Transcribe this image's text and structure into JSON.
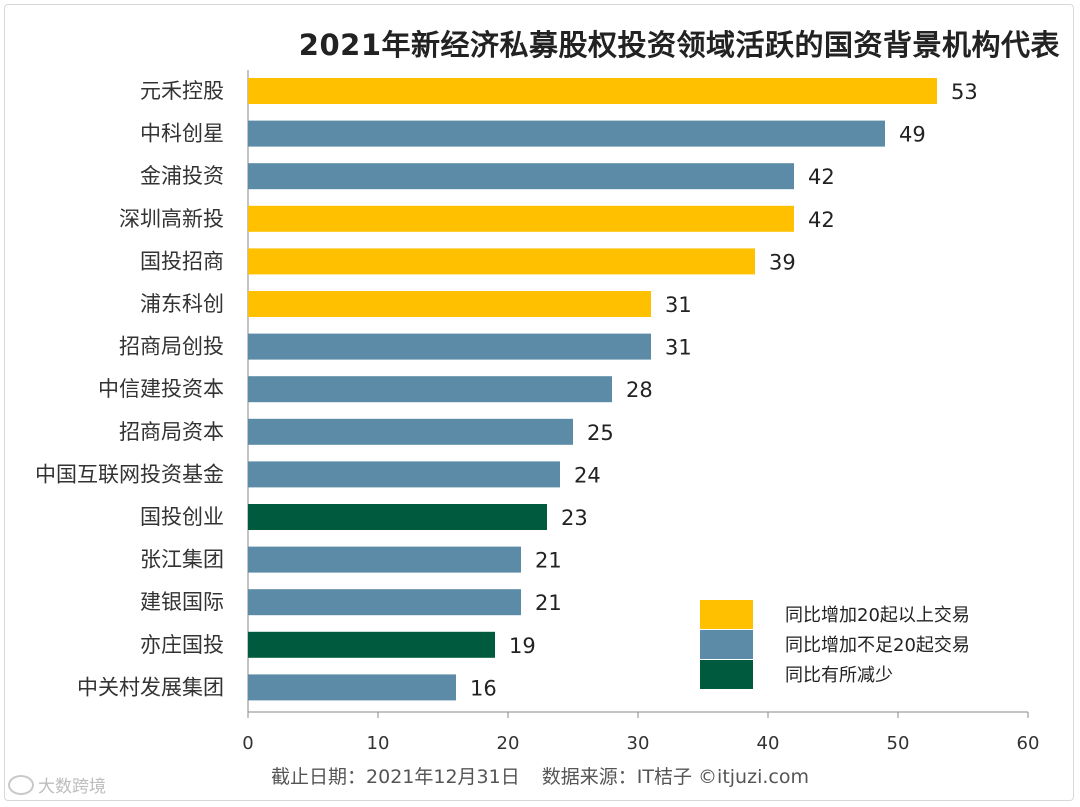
{
  "chart_data": {
    "type": "bar",
    "orientation": "horizontal",
    "title": "2021年新经济私募股权投资领域活跃的国资背景机构代表",
    "categories": [
      "元禾控股",
      "中科创星",
      "金浦投资",
      "深圳高新投",
      "国投招商",
      "浦东科创",
      "招商局创投",
      "中信建投资本",
      "招商局资本",
      "中国互联网投资基金",
      "国投创业",
      "张江集团",
      "建银国际",
      "亦庄国投",
      "中关村发展集团"
    ],
    "values": [
      53,
      49,
      42,
      42,
      39,
      31,
      31,
      28,
      25,
      24,
      23,
      21,
      21,
      19,
      16
    ],
    "groups": [
      0,
      1,
      1,
      0,
      0,
      0,
      1,
      1,
      1,
      1,
      2,
      1,
      1,
      2,
      1
    ],
    "legend": [
      {
        "label": "同比增加20起以上交易",
        "color": "#FFC000"
      },
      {
        "label": "同比增加不足20起交易",
        "color": "#5B8BA6"
      },
      {
        "label": "同比有所减少",
        "color": "#005B3E"
      }
    ],
    "legend_position": "bottom-right",
    "xlim": [
      0,
      60
    ],
    "xticks": [
      0,
      10,
      20,
      30,
      40,
      50,
      60
    ],
    "grid": false
  },
  "footer": {
    "date_label": "截止日期：2021年12月31日",
    "source_label": "数据来源：IT桔子 ©itjuzi.com"
  },
  "watermark": {
    "text": "大数跨境"
  }
}
